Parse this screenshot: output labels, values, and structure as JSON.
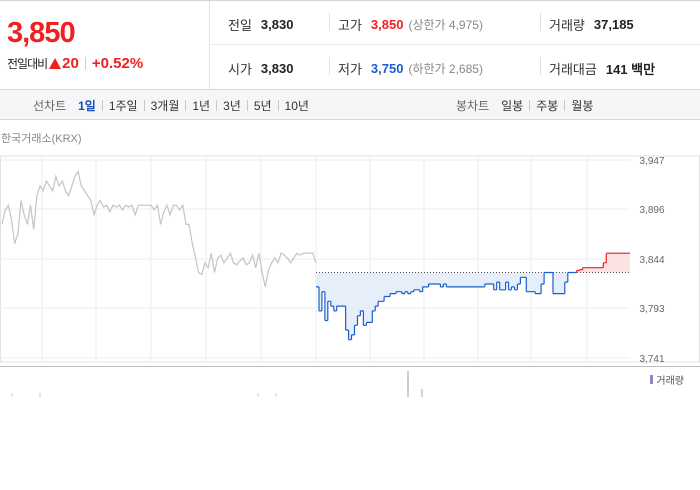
{
  "summary": {
    "price": "3,850",
    "change_label": "전일대비",
    "change_icon": "up-triangle-icon",
    "change_amount": "20",
    "change_percent": "+0.52%",
    "row1": [
      {
        "label": "전일",
        "value": "3,830",
        "tone": "normal",
        "sub": ""
      },
      {
        "label": "고가",
        "value": "3,850",
        "tone": "up",
        "sub": "(상한가 4,975)"
      },
      {
        "label": "거래량",
        "value": "37,185",
        "tone": "normal",
        "sub": ""
      }
    ],
    "row2": [
      {
        "label": "시가",
        "value": "3,830",
        "tone": "normal",
        "sub": ""
      },
      {
        "label": "저가",
        "value": "3,750",
        "tone": "down",
        "sub": "(하한가 2,685)"
      },
      {
        "label": "거래대금",
        "value": "141 백만",
        "tone": "normal",
        "sub": ""
      }
    ]
  },
  "tabs": {
    "line_label": "선차트",
    "line_tabs": [
      "1일",
      "1주일",
      "3개월",
      "1년",
      "3년",
      "5년",
      "10년"
    ],
    "line_active": 0,
    "candle_label": "봉차트",
    "candle_tabs": [
      "일봉",
      "주봉",
      "월봉"
    ]
  },
  "chart_source": "한국거래소(KRX)",
  "volume_legend": "거래량",
  "colors": {
    "up": "#f02020",
    "down": "#1a5fd0",
    "prev_session_line": "#c4c4c4",
    "fill_below_ref": "#e6eefa",
    "fill_above_ref": "#fbe3e3"
  },
  "chart_data": {
    "type": "line",
    "title": "",
    "xlabel": "",
    "ylabel": "",
    "yticks": [
      3947,
      3896,
      3844,
      3793,
      3741
    ],
    "ylim": [
      3741,
      3947
    ],
    "reference_price": 3830,
    "grid": true,
    "series": [
      {
        "segment": "previous-session",
        "values": [
          3880,
          3895,
          3900,
          3885,
          3860,
          3870,
          3905,
          3890,
          3880,
          3900,
          3875,
          3910,
          3920,
          3915,
          3925,
          3920,
          3915,
          3930,
          3920,
          3925,
          3915,
          3910,
          3920,
          3930,
          3935,
          3920,
          3915,
          3910,
          3905,
          3890,
          3900,
          3905,
          3898,
          3900,
          3893,
          3900,
          3898,
          3900,
          3895,
          3900,
          3898,
          3900,
          3890,
          3900,
          3900,
          3900,
          3900,
          3900,
          3895,
          3900,
          3880,
          3893,
          3900,
          3890,
          3900,
          3900,
          3895,
          3900,
          3880,
          3880,
          3860,
          3845,
          3830,
          3828,
          3840,
          3835,
          3850,
          3830,
          3845,
          3848,
          3840,
          3845,
          3850,
          3840,
          3838,
          3842,
          3845,
          3838,
          3840,
          3848,
          3835,
          3850,
          3830,
          3815,
          3832,
          3840,
          3845,
          3840,
          3850,
          3848,
          3845,
          3840,
          3845,
          3850,
          3848,
          3850,
          3850,
          3850,
          3850,
          3840
        ]
      },
      {
        "segment": "current-session",
        "values": [
          3815,
          3790,
          3810,
          3780,
          3800,
          3795,
          3790,
          3795,
          3795,
          3795,
          3770,
          3760,
          3765,
          3775,
          3785,
          3790,
          3775,
          3778,
          3778,
          3790,
          3795,
          3800,
          3800,
          3805,
          3805,
          3808,
          3808,
          3810,
          3810,
          3808,
          3810,
          3808,
          3810,
          3812,
          3812,
          3810,
          3815,
          3815,
          3818,
          3818,
          3818,
          3818,
          3815,
          3818,
          3815,
          3815,
          3815,
          3815,
          3815,
          3815,
          3815,
          3815,
          3815,
          3815,
          3815,
          3815,
          3815,
          3818,
          3818,
          3818,
          3812,
          3820,
          3812,
          3812,
          3820,
          3812,
          3815,
          3812,
          3818,
          3825,
          3825,
          3810,
          3810,
          3810,
          3808,
          3808,
          3818,
          3830,
          3830,
          3830,
          3808,
          3808,
          3808,
          3808,
          3820,
          3830,
          3830,
          3830,
          3832,
          3833,
          3835,
          3835,
          3835,
          3835,
          3835,
          3835,
          3835,
          3840,
          3850,
          3850,
          3850,
          3850,
          3850,
          3850,
          3850,
          3850,
          3850
        ]
      }
    ]
  }
}
